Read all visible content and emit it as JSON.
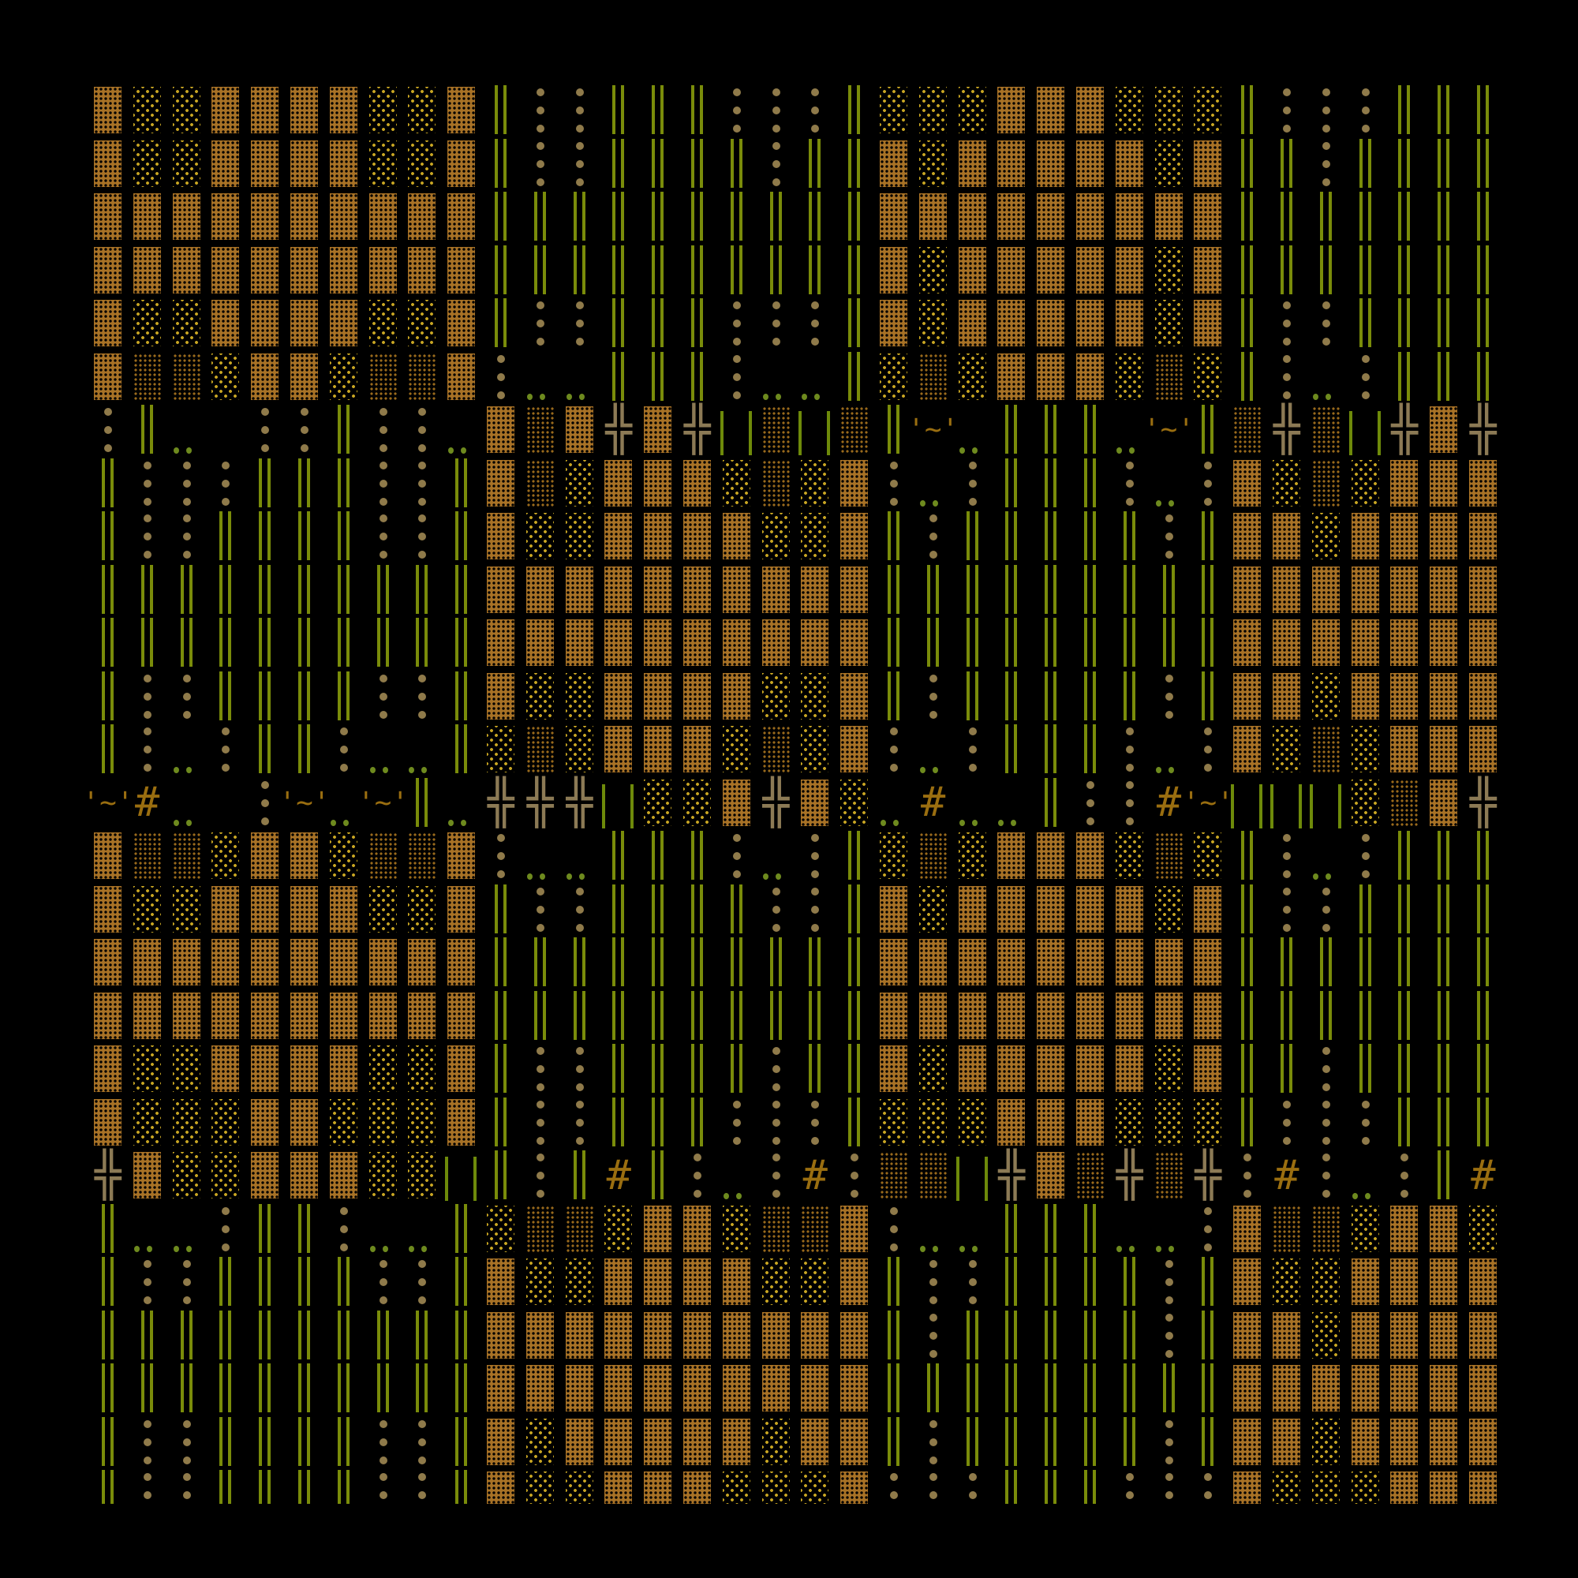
{
  "colors": {
    "background": "#000000",
    "tile_dense": "#a87226",
    "tile_light_dots": "#c9a623",
    "tile_medium_dots": "#9a6a1c",
    "green_bars": "#7a8c0a",
    "tan_dots": "#8f7a4a",
    "green_dots": "#6e8a1e",
    "cross": "#8c7a55",
    "hash_tilde": "#9a6e10"
  },
  "legend": {
    "F": "dense-tile",
    "L": "light-dotted-tile",
    "M": "medium-dotted-tile",
    "B": "double-bar",
    "D": "dot-column",
    "g": "green-dots",
    "b": "thin-bar-pair",
    "X": "cross",
    "H": "hash",
    "T": "tilde-quote",
    ".": "empty"
  },
  "glyphs": {
    "X": "╬",
    "H": "#",
    "T": "'~'"
  },
  "rows": [
    "FLLFFFFLLFBDDBBBDDDBLLLFFFLLLBDDDBBB",
    "FLLFFFFLLFBDDBBBBDBBFLFFFFFLFBBDBBBB",
    "FFFFFFFFFFBBBBBBBBBBFFFFFFFFFBBBBBBB",
    "FFFFFFFFFFBBBBBBBBBBFLFFFFFLFBBBBBBB",
    "FLLFFFFLLFBDDBBBDDDBFLFFFFFLFBDDBBBB",
    "FMMLFFLMMFDggBBBDggBLMLFFFLMLBDgDBBB",
    "DBg.DDBDDgFMFXFXbMbMBTgBBBgTBMXMbXFX",
    "BDDDBBBDDBFMLFFFLMLFDgDBBBDgDFLMLFFF",
    "BDDBBBBDDBFLLFFFFLLFBDBBBBBDBFFLFFFF",
    "BBBBBBBBBBFFFFFFFFFFBBBBBBBBBFFFFFFF",
    "BBBBBBBBBBFFFFFFFFFFBBBBBBBBBFFFFFFF",
    "BDDBBBBDDBFLLFFFFLLFBDBBBBBDBFFLFFFF",
    "BDgDBBDggBLMLFFFLMLFDgDBBBDgDFLMLFFF",
    "THg.DTgTBgXXXbLLFXFLgHggBDDHTbbbLMFX",
    "FMMLFFLMMFDggBBBDgDBLMLFFFLMLBDgDBBB",
    "FLLFFFFLLFBDDBBBBDDBFLFFFFFLFBDDBBBB",
    "FFFFFFFFFFBBBBBBBBBBFFFFFFFFFBBBBBBB",
    "FFFFFFFFFFBBBBBBBBBBFFFFFFFFFBBBBBBB",
    "FLLFFFFLLFBDDBBBBDBBFLFFFFFLFBBDBBBB",
    "FLLLFFLLLFBDDBBBDDDBLLLFFFLLLBDDDBBB",
    "XFLLFFFLLbBDBHBDgDHDMMbXFMXMXDHDgDBH",
    "BggDBBDggBLMMLFFLMMFDggBBBggDFMMLFFL",
    "BDDBBBBDDBFLLFFFFLLFBDDBBBBDBFLLFFFF",
    "BBBBBBBBBBFFFFFFFFFFBDBBBBBDBFFLFFFF",
    "BBBBBBBBBBFFFFFFFFFFBBBBBBBBBFFFFFFF",
    "BDDBBBBDDBFLFFFFFLFFBDBBBBBDBFFLFFFF",
    "BDDBBBBDDBFLLFFFLLLFDDDBBBDDDFLLLFFF"
  ]
}
